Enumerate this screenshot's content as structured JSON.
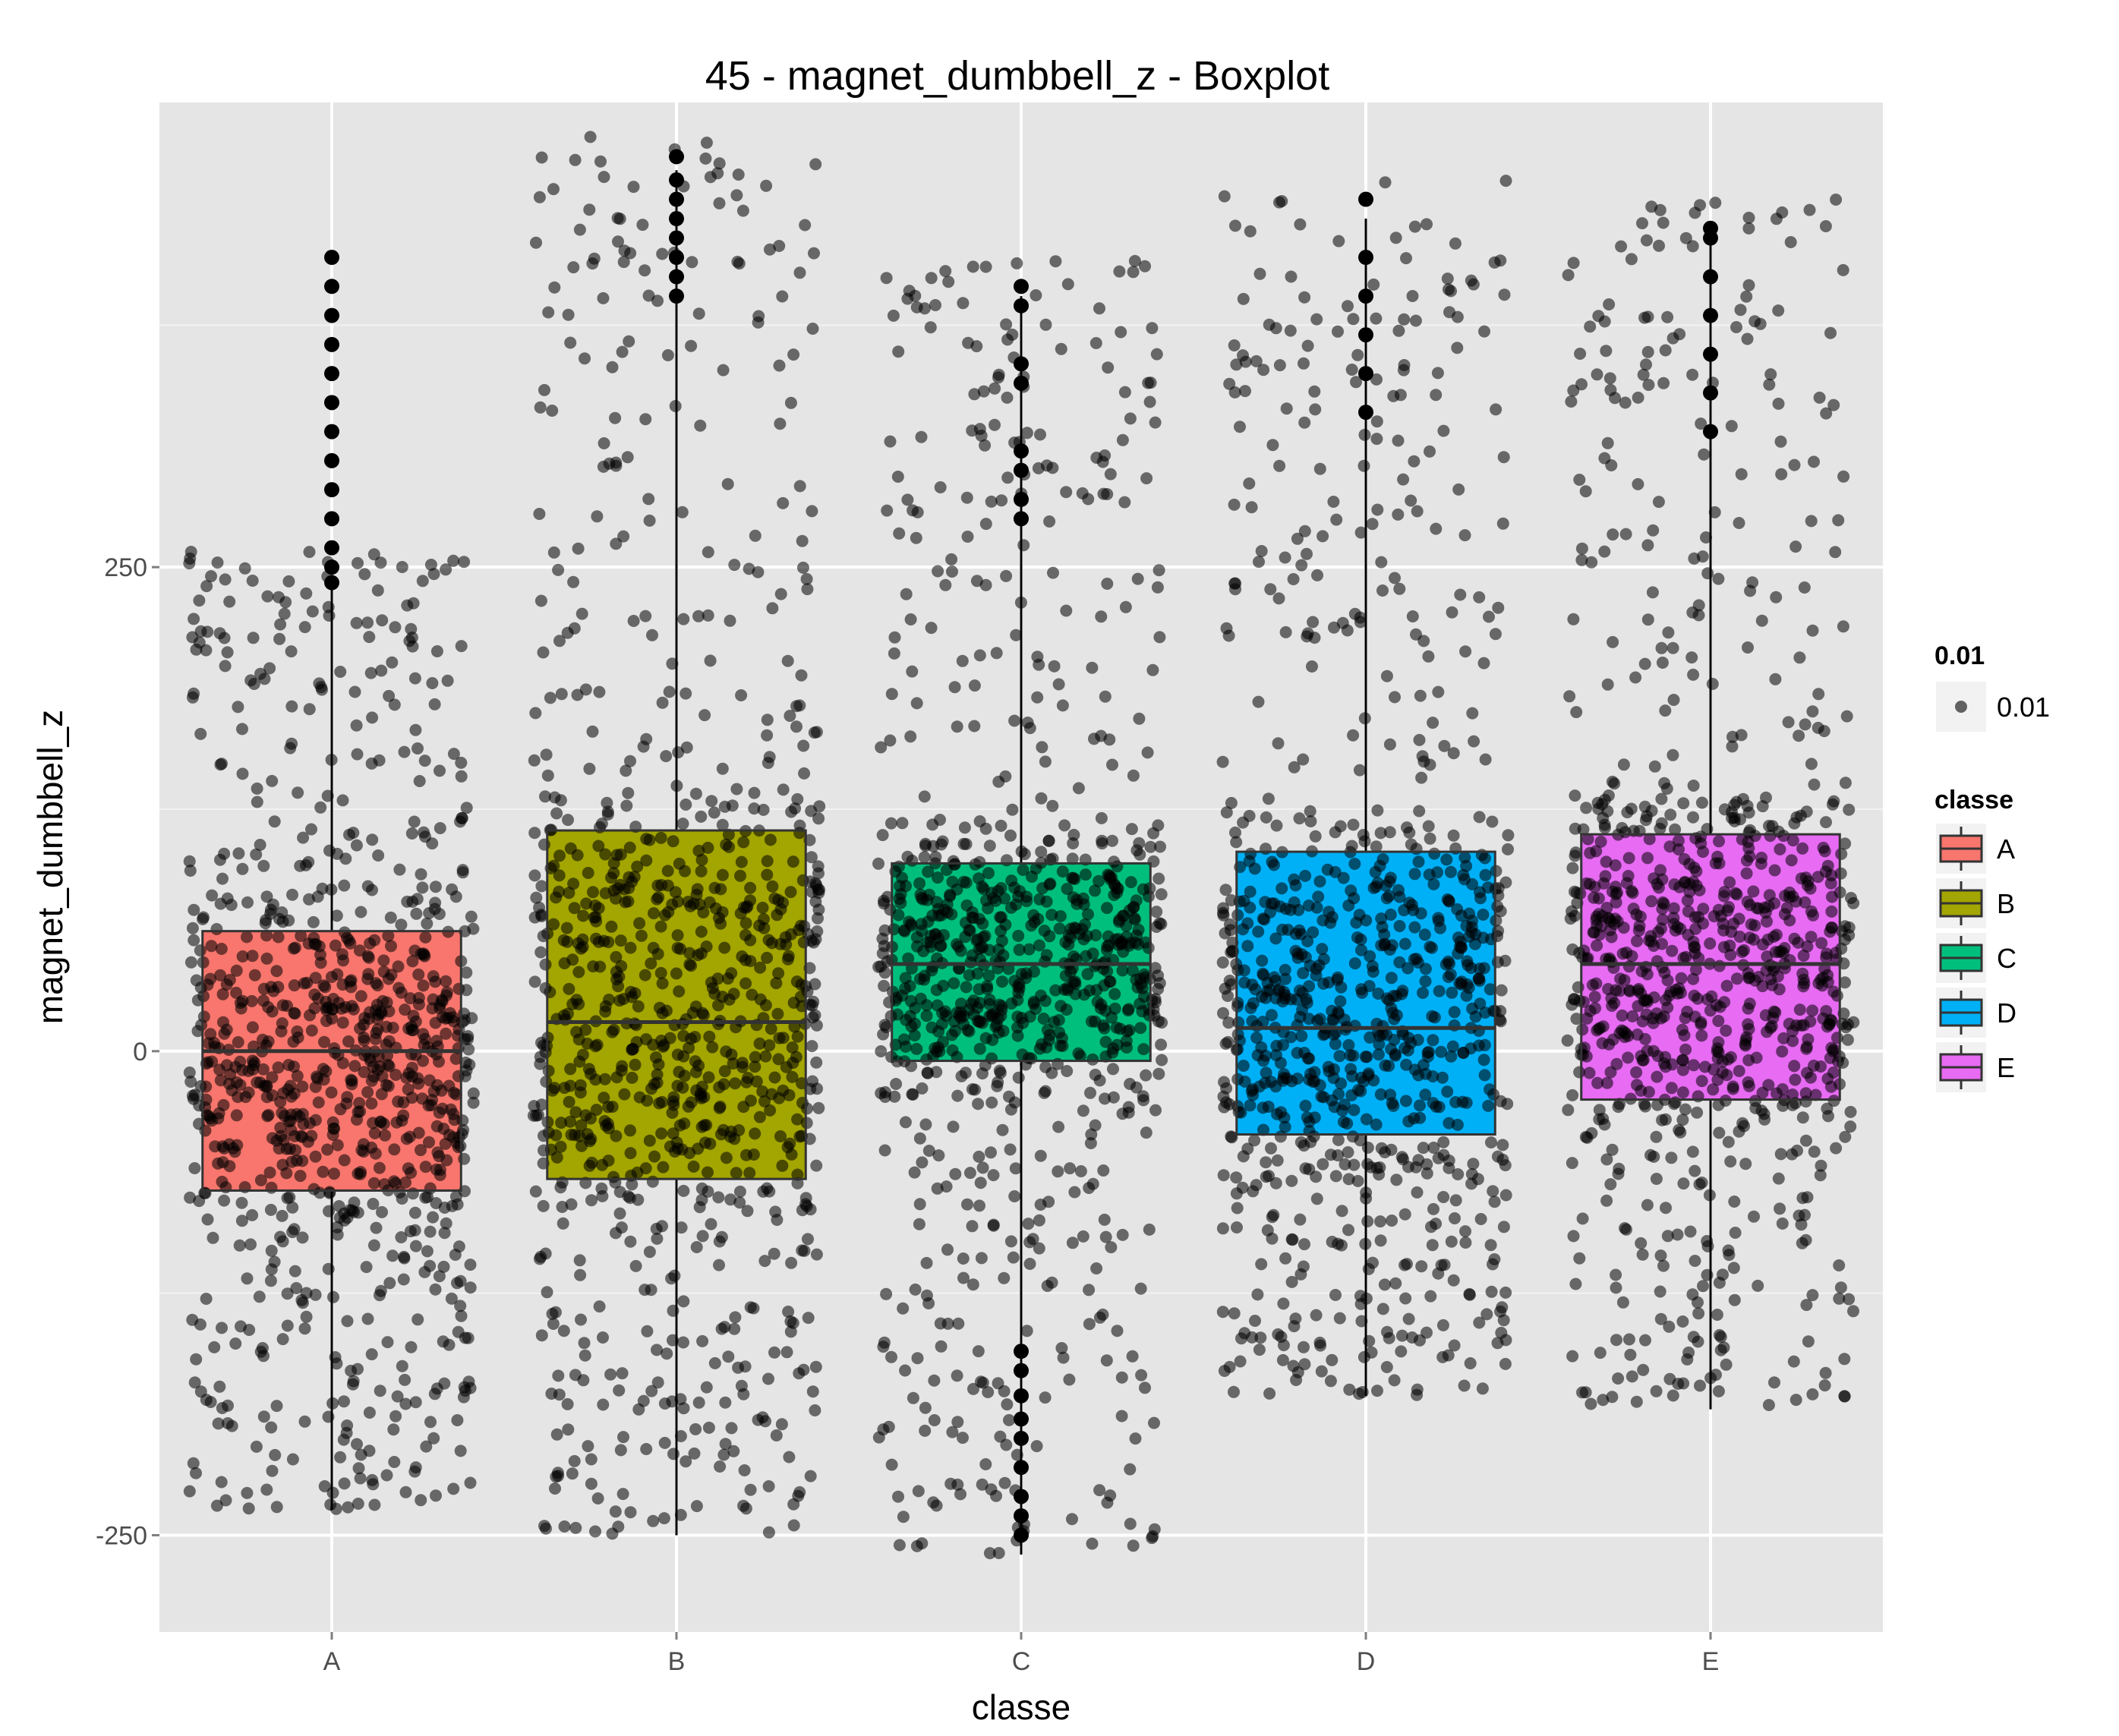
{
  "chart_data": {
    "type": "boxplot",
    "title": "45 - magnet_dumbbell_z - Boxplot",
    "xlabel": "classe",
    "ylabel": "magnet_dumbbell_z",
    "categories": [
      "A",
      "B",
      "C",
      "D",
      "E"
    ],
    "ylim": [
      -300,
      490
    ],
    "yticks": [
      -250,
      0,
      250
    ],
    "grid": true,
    "point_alpha": "0.01",
    "legend": {
      "position": "right",
      "alpha_title": "0.01",
      "alpha_label": "0.01",
      "fill_title": "classe"
    },
    "colors": {
      "A": "#f8766d",
      "B": "#a3a500",
      "C": "#00bf7d",
      "D": "#00b0f6",
      "E": "#e76bf3",
      "panel": "#e5e5e5",
      "grid": "#ffffff",
      "points": "#000000"
    },
    "boxes": [
      {
        "classe": "A",
        "whisker_low": -237,
        "q1": -72,
        "median": 0,
        "q3": 62,
        "whisker_high": 240
      },
      {
        "classe": "B",
        "whisker_low": -250,
        "q1": -66,
        "median": 15,
        "q3": 114,
        "whisker_high": 455
      },
      {
        "classe": "C",
        "whisker_low": -260,
        "q1": -5,
        "median": 45,
        "q3": 97,
        "whisker_high": 390
      },
      {
        "classe": "D",
        "whisker_low": -178,
        "q1": -43,
        "median": 12,
        "q3": 103,
        "whisker_high": 430
      },
      {
        "classe": "E",
        "whisker_low": -185,
        "q1": -25,
        "median": 45,
        "q3": 112,
        "whisker_high": 420
      }
    ],
    "outliers": {
      "A": [
        242,
        250,
        260,
        275,
        290,
        305,
        320,
        335,
        350,
        365,
        380,
        395,
        410
      ],
      "B": [
        390,
        400,
        410,
        420,
        430,
        440,
        450,
        462
      ],
      "C": [
        -250,
        -240,
        -230,
        -215,
        -200,
        -190,
        -178,
        -165,
        -155,
        275,
        285,
        300,
        310,
        345,
        355,
        385,
        395
      ],
      "D": [
        330,
        350,
        370,
        390,
        410,
        440
      ],
      "E": [
        320,
        340,
        360,
        380,
        400,
        420,
        425
      ]
    }
  }
}
